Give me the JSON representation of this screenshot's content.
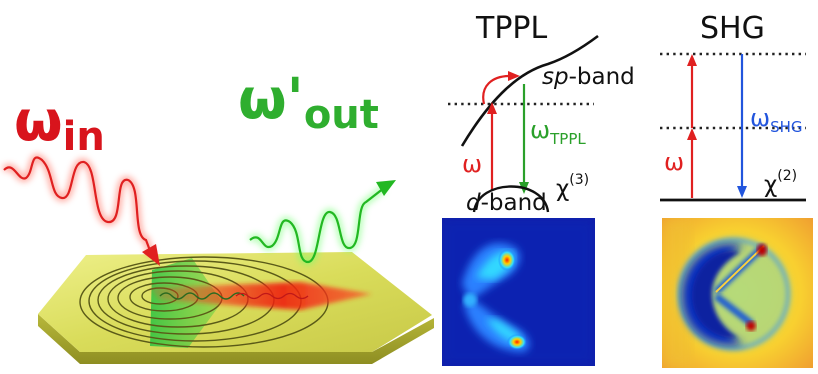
{
  "left_panel": {
    "omega_in": {
      "symbol": "ω",
      "subscript": "in",
      "color": "#d8141c"
    },
    "omega_out": {
      "symbol": "ω'",
      "subscript": "out",
      "color": "#2fae2f"
    }
  },
  "tppl_panel": {
    "title": "TPPL",
    "sp_band": {
      "italic": "sp",
      "rest": "-band"
    },
    "d_band": {
      "italic": "d",
      "rest": "-band"
    },
    "omega_excite": "ω",
    "omega_emit": {
      "symbol": "ω",
      "subscript": "TPPL"
    },
    "chi": {
      "symbol": "χ",
      "superscript": "(3)"
    },
    "excite_color": "#e02020",
    "emit_color": "#2aa02a"
  },
  "shg_panel": {
    "title": "SHG",
    "omega_excite": "ω",
    "omega_emit": {
      "symbol": "ω",
      "subscript": "SHG"
    },
    "chi": {
      "symbol": "χ",
      "superscript": "(2)"
    },
    "excite_color": "#e02020",
    "emit_color": "#2255dd"
  }
}
